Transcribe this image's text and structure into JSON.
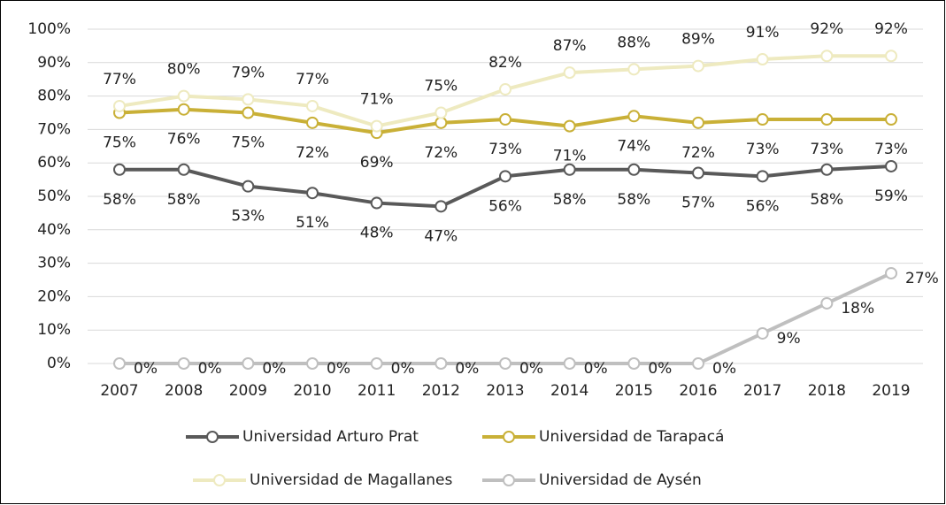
{
  "chart_data": {
    "type": "line",
    "categories": [
      "2007",
      "2008",
      "2009",
      "2010",
      "2011",
      "2012",
      "2013",
      "2014",
      "2015",
      "2016",
      "2017",
      "2018",
      "2019"
    ],
    "series": [
      {
        "name": "Universidad Arturo Prat",
        "color": "#595959",
        "label_position": "below",
        "values": [
          58,
          58,
          53,
          51,
          48,
          47,
          56,
          58,
          58,
          57,
          56,
          58,
          59
        ],
        "value_labels": [
          "58%",
          "58%",
          "53%",
          "51%",
          "48%",
          "47%",
          "56%",
          "58%",
          "58%",
          "57%",
          "56%",
          "58%",
          "59%"
        ]
      },
      {
        "name": "Universidad de Tarapacá",
        "color": "#c9b037",
        "label_position": "below",
        "values": [
          75,
          76,
          75,
          72,
          69,
          72,
          73,
          71,
          74,
          72,
          73,
          73,
          73
        ],
        "value_labels": [
          "75%",
          "76%",
          "75%",
          "72%",
          "69%",
          "72%",
          "73%",
          "71%",
          "74%",
          "72%",
          "73%",
          "73%",
          "73%"
        ]
      },
      {
        "name": "Universidad de Magallanes",
        "color": "#eeeac0",
        "label_position": "above",
        "values": [
          77,
          80,
          79,
          77,
          71,
          75,
          82,
          87,
          88,
          89,
          91,
          92,
          92
        ],
        "value_labels": [
          "77%",
          "80%",
          "79%",
          "77%",
          "71%",
          "75%",
          "82%",
          "87%",
          "88%",
          "89%",
          "91%",
          "92%",
          "92%"
        ]
      },
      {
        "name": "Universidad de Aysén",
        "color": "#bfbfbf",
        "label_position": "right",
        "values": [
          0,
          0,
          0,
          0,
          0,
          0,
          0,
          0,
          0,
          0,
          9,
          18,
          27
        ],
        "value_labels": [
          "0%",
          "0%",
          "0%",
          "0%",
          "0%",
          "0%",
          "0%",
          "0%",
          "0%",
          "0%",
          "9%",
          "18%",
          "27%"
        ]
      }
    ],
    "ylim": [
      0,
      100
    ],
    "yticks": [
      {
        "value": 0,
        "label": "0%"
      },
      {
        "value": 10,
        "label": "10%"
      },
      {
        "value": 20,
        "label": "20%"
      },
      {
        "value": 30,
        "label": "30%"
      },
      {
        "value": 40,
        "label": "40%"
      },
      {
        "value": 50,
        "label": "50%"
      },
      {
        "value": 60,
        "label": "60%"
      },
      {
        "value": 70,
        "label": "70%"
      },
      {
        "value": 80,
        "label": "80%"
      },
      {
        "value": 90,
        "label": "90%"
      },
      {
        "value": 100,
        "label": "100%"
      }
    ],
    "grid": true,
    "legend": "bottom"
  }
}
